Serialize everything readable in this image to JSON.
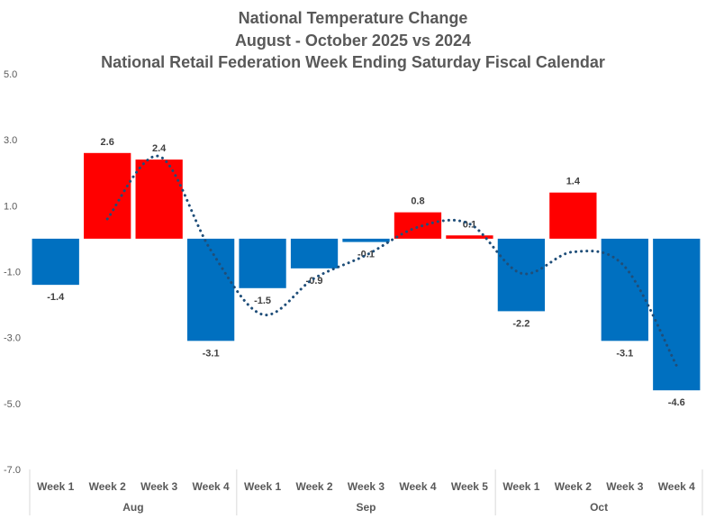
{
  "chart_data": {
    "type": "bar",
    "title_lines": [
      "National Temperature Change",
      "August - October 2025 vs 2024",
      "National Retail Federation Week Ending Saturday Fiscal Calendar"
    ],
    "ylim": [
      -7.0,
      5.0
    ],
    "yticks": [
      "5.0",
      "3.0",
      "1.0",
      "-1.0",
      "-3.0",
      "-5.0",
      "-7.0"
    ],
    "ytick_values": [
      5,
      3,
      1,
      -1,
      -3,
      -5,
      -7
    ],
    "categories": [
      "Week 1",
      "Week 2",
      "Week 3",
      "Week 4",
      "Week 1",
      "Week 2",
      "Week 3",
      "Week 4",
      "Week 5",
      "Week 1",
      "Week 2",
      "Week 3",
      "Week 4"
    ],
    "values": [
      -1.4,
      2.6,
      2.4,
      -3.1,
      -1.5,
      -0.9,
      -0.1,
      0.8,
      0.1,
      -2.2,
      1.4,
      -3.1,
      -4.6
    ],
    "labels": [
      "-1.4",
      "2.6",
      "2.4",
      "-3.1",
      "-1.5",
      "-0.9",
      "-0.1",
      "0.8",
      "0.1",
      "-2.2",
      "1.4",
      "-3.1",
      "-4.6"
    ],
    "groups": [
      {
        "name": "Aug",
        "count": 4
      },
      {
        "name": "Sep",
        "count": 5
      },
      {
        "name": "Oct",
        "count": 4
      }
    ],
    "trendline": {
      "type": "moving-average",
      "period": 2,
      "values": [
        null,
        0.6,
        2.5,
        -0.35,
        -2.3,
        -1.2,
        -0.5,
        0.35,
        0.45,
        -1.05,
        -0.4,
        -0.85,
        -3.85
      ]
    },
    "colors": {
      "positive": "#FF0000",
      "negative": "#0070C0",
      "trend": "#1F4E79",
      "axis_text": "#595959",
      "label_text": "#404040"
    }
  }
}
